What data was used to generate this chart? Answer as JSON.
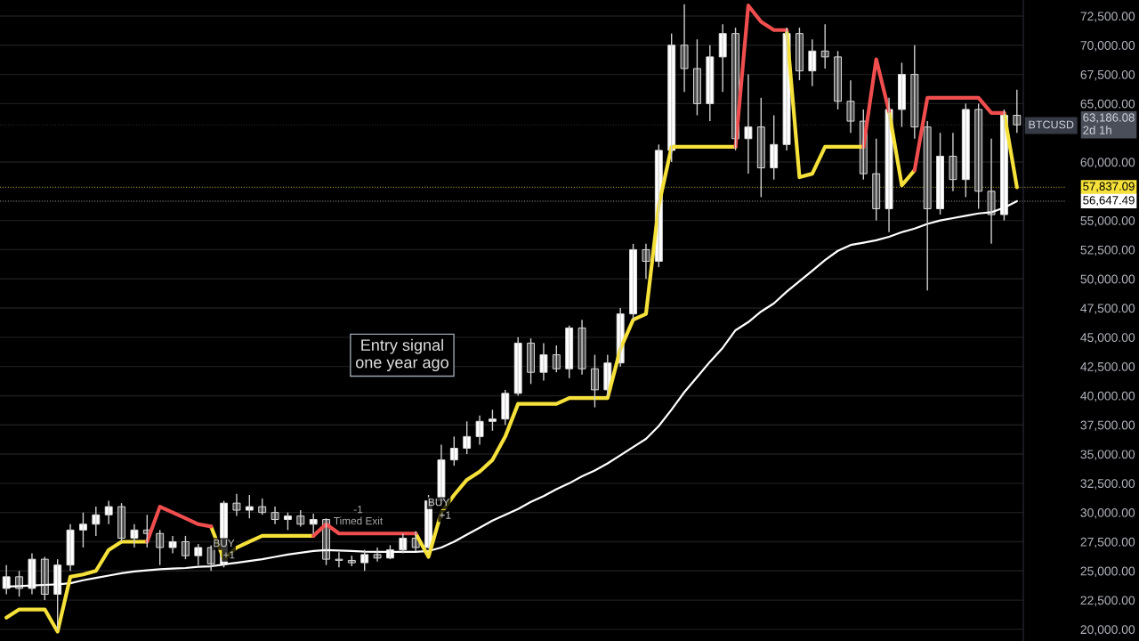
{
  "chart_data": {
    "type": "candlestick",
    "categories": [
      null,
      null,
      null,
      null,
      null,
      null,
      null,
      null,
      null,
      null,
      null,
      null,
      null,
      null,
      null,
      null,
      null,
      null,
      null,
      null,
      null,
      null,
      null,
      null,
      null,
      null,
      null,
      null,
      null,
      null,
      null,
      null,
      null,
      null,
      null,
      null,
      null,
      null,
      null,
      null,
      null,
      null,
      null,
      null,
      null,
      null,
      null,
      null,
      null,
      null,
      null,
      null,
      null,
      null,
      null,
      null,
      null,
      null,
      null,
      null,
      null,
      null,
      null,
      null,
      null,
      null,
      null,
      null,
      null,
      null,
      null,
      null,
      null,
      null,
      null,
      null,
      null,
      null,
      null,
      null
    ],
    "ohlc": [
      [
        23500,
        25500,
        23000,
        24500
      ],
      [
        24500,
        25000,
        22800,
        23500
      ],
      [
        23500,
        26500,
        23000,
        26000
      ],
      [
        26000,
        26200,
        22500,
        23000
      ],
      [
        23000,
        26000,
        20000,
        25500
      ],
      [
        25500,
        29000,
        25000,
        28500
      ],
      [
        28500,
        30000,
        27000,
        29000
      ],
      [
        29000,
        30500,
        28000,
        29800
      ],
      [
        29800,
        31000,
        29000,
        30500
      ],
      [
        30500,
        30800,
        27500,
        27800
      ],
      [
        27800,
        29000,
        27000,
        28500
      ],
      [
        28500,
        29800,
        27000,
        28200
      ],
      [
        28200,
        28500,
        25500,
        27000
      ],
      [
        27000,
        28000,
        26500,
        27500
      ],
      [
        27500,
        28000,
        26000,
        26300
      ],
      [
        26300,
        27300,
        25500,
        27000
      ],
      [
        27000,
        27200,
        25000,
        25600
      ],
      [
        25600,
        31000,
        25300,
        30800
      ],
      [
        30800,
        31600,
        29700,
        30200
      ],
      [
        30200,
        31500,
        29500,
        30500
      ],
      [
        30500,
        31200,
        29800,
        30000
      ],
      [
        30000,
        30500,
        29000,
        29400
      ],
      [
        29400,
        30000,
        28500,
        29700
      ],
      [
        29700,
        30200,
        28800,
        29000
      ],
      [
        29000,
        29900,
        28200,
        29400
      ],
      [
        29400,
        29500,
        25500,
        26000
      ],
      [
        26000,
        26600,
        25300,
        25900
      ],
      [
        25900,
        26300,
        25400,
        25700
      ],
      [
        25700,
        26800,
        25000,
        26400
      ],
      [
        26400,
        27000,
        25800,
        26100
      ],
      [
        26100,
        27200,
        26000,
        26800
      ],
      [
        26800,
        28200,
        26500,
        27800
      ],
      [
        27800,
        28400,
        26700,
        27000
      ],
      [
        27000,
        31500,
        26900,
        31000
      ],
      [
        31000,
        35800,
        30500,
        34500
      ],
      [
        34500,
        36500,
        34000,
        35500
      ],
      [
        35500,
        37800,
        35000,
        36500
      ],
      [
        36500,
        38300,
        35800,
        37800
      ],
      [
        37800,
        38800,
        37000,
        38000
      ],
      [
        38000,
        40500,
        37500,
        40200
      ],
      [
        40200,
        45000,
        40000,
        44500
      ],
      [
        44500,
        44900,
        41000,
        42000
      ],
      [
        42000,
        44500,
        41300,
        43500
      ],
      [
        43500,
        44300,
        42000,
        42300
      ],
      [
        42300,
        46000,
        41500,
        45800
      ],
      [
        45800,
        46500,
        41800,
        42300
      ],
      [
        42300,
        43500,
        39000,
        40500
      ],
      [
        40500,
        43500,
        40000,
        42800
      ],
      [
        42800,
        47500,
        42500,
        47000
      ],
      [
        47000,
        53000,
        46500,
        52500
      ],
      [
        52500,
        53000,
        50000,
        51500
      ],
      [
        51500,
        61500,
        51000,
        61000
      ],
      [
        61000,
        71000,
        60000,
        70000
      ],
      [
        70000,
        73500,
        66000,
        68000
      ],
      [
        68000,
        70500,
        64000,
        65000
      ],
      [
        65000,
        70000,
        63500,
        69000
      ],
      [
        69000,
        71800,
        66000,
        71000
      ],
      [
        71000,
        71500,
        61000,
        62000
      ],
      [
        62000,
        67500,
        59000,
        63000
      ],
      [
        63000,
        65500,
        57000,
        59500
      ],
      [
        59500,
        64000,
        58500,
        61500
      ],
      [
        61500,
        71500,
        61000,
        71000
      ],
      [
        71000,
        71500,
        67000,
        67800
      ],
      [
        67800,
        70500,
        66500,
        69500
      ],
      [
        69500,
        71800,
        68000,
        69000
      ],
      [
        69000,
        69500,
        64500,
        65200
      ],
      [
        65200,
        67000,
        62500,
        63500
      ],
      [
        63500,
        64500,
        58500,
        59000
      ],
      [
        59000,
        62000,
        55000,
        56000
      ],
      [
        56000,
        65500,
        54000,
        64500
      ],
      [
        64500,
        68500,
        63000,
        67500
      ],
      [
        67500,
        70000,
        62000,
        63000
      ],
      [
        63000,
        63500,
        49000,
        56000
      ],
      [
        56000,
        62500,
        55500,
        60500
      ],
      [
        60500,
        62500,
        57500,
        58500
      ],
      [
        58500,
        65000,
        57000,
        64500
      ],
      [
        64500,
        65000,
        56000,
        57500
      ],
      [
        57500,
        62000,
        53000,
        55500
      ],
      [
        55500,
        64500,
        55000,
        64000
      ],
      [
        64000,
        66200,
        62500,
        63186.08
      ]
    ],
    "colors": [
      "#ffffff",
      "#4a4a4a",
      "#ffffff",
      "#4a4a4a",
      "#ffffff",
      "#ffffff",
      "#ffffff",
      "#ffffff",
      "#ffffff",
      "#4a4a4a",
      "#ffffff",
      "#4a4a4a",
      "#4a4a4a",
      "#ffffff",
      "#4a4a4a",
      "#ffffff",
      "#4a4a4a",
      "#ffffff",
      "#4a4a4a",
      "#ffffff",
      "#4a4a4a",
      "#4a4a4a",
      "#ffffff",
      "#4a4a4a",
      "#ffffff",
      "#4a4a4a",
      "#4a4a4a",
      "#4a4a4a",
      "#ffffff",
      "#4a4a4a",
      "#ffffff",
      "#ffffff",
      "#4a4a4a",
      "#ffffff",
      "#ffffff",
      "#ffffff",
      "#ffffff",
      "#ffffff",
      "#ffffff",
      "#ffffff",
      "#ffffff",
      "#4a4a4a",
      "#ffffff",
      "#4a4a4a",
      "#ffffff",
      "#4a4a4a",
      "#4a4a4a",
      "#ffffff",
      "#ffffff",
      "#ffffff",
      "#4a4a4a",
      "#ffffff",
      "#ffffff",
      "#4a4a4a",
      "#4a4a4a",
      "#ffffff",
      "#ffffff",
      "#4a4a4a",
      "#ffffff",
      "#4a4a4a",
      "#ffffff",
      "#ffffff",
      "#4a4a4a",
      "#ffffff",
      "#4a4a4a",
      "#4a4a4a",
      "#4a4a4a",
      "#4a4a4a",
      "#4a4a4a",
      "#ffffff",
      "#ffffff",
      "#4a4a4a",
      "#4a4a4a",
      "#ffffff",
      "#4a4a4a",
      "#ffffff",
      "#4a4a4a",
      "#4a4a4a",
      "#ffffff",
      "#4a4a4a"
    ],
    "series": [
      {
        "type": "line",
        "color": "#ffffff",
        "values": [
          23650,
          23700,
          23750,
          23800,
          23850,
          23950,
          24200,
          24400,
          24600,
          24800,
          24950,
          25050,
          25150,
          25200,
          25250,
          25350,
          25400,
          25550,
          25700,
          25850,
          26000,
          26200,
          26400,
          26550,
          26700,
          26780,
          26750,
          26700,
          26650,
          26630,
          26630,
          26630,
          26630,
          26700,
          27000,
          27500,
          28100,
          28700,
          29300,
          29800,
          30300,
          30900,
          31400,
          32000,
          32500,
          33100,
          33600,
          34200,
          34900,
          35600,
          36300,
          37400,
          38800,
          40300,
          41600,
          42900,
          44100,
          45600,
          46300,
          47200,
          47900,
          48900,
          49800,
          50700,
          51600,
          52400,
          52900,
          53100,
          53300,
          53600,
          54000,
          54300,
          54700,
          55000,
          55200,
          55400,
          55600,
          55700,
          56100,
          56647.49
        ]
      },
      {
        "type": "line",
        "color": "#f5e13a",
        "values": [
          21000,
          21700,
          21700,
          21700,
          19800,
          24500,
          24700,
          25000,
          26800,
          27500,
          27500,
          27500,
          null,
          null,
          null,
          null,
          28800,
          26000,
          27000,
          27500,
          28000,
          28000,
          28000,
          28000,
          28000,
          null,
          null,
          null,
          null,
          null,
          null,
          null,
          28200,
          26200,
          30000,
          31500,
          32800,
          33500,
          34500,
          36500,
          39300,
          39300,
          39300,
          39300,
          39800,
          39800,
          39800,
          39800,
          44000,
          46500,
          47000,
          56300,
          61300,
          61300,
          61300,
          61300,
          61300,
          61300,
          null,
          null,
          null,
          71300,
          58700,
          59000,
          61300,
          61300,
          61300,
          61300,
          null,
          64350,
          58000,
          59300,
          null,
          null,
          null,
          null,
          null,
          null,
          64200,
          57837.09
        ]
      },
      {
        "type": "line",
        "color": "#f04e4e",
        "values": [
          null,
          null,
          null,
          null,
          null,
          null,
          null,
          null,
          null,
          null,
          null,
          27500,
          30500,
          30000,
          29500,
          29000,
          28800,
          null,
          null,
          null,
          null,
          null,
          null,
          null,
          28000,
          29000,
          28200,
          28200,
          28200,
          28200,
          28200,
          28200,
          28200,
          null,
          null,
          null,
          null,
          null,
          null,
          null,
          null,
          null,
          null,
          null,
          null,
          null,
          null,
          null,
          null,
          null,
          null,
          null,
          null,
          null,
          null,
          null,
          null,
          61300,
          73400,
          72000,
          71300,
          71300,
          null,
          null,
          null,
          null,
          null,
          61300,
          68800,
          64350,
          null,
          59300,
          65500,
          65500,
          65500,
          65500,
          65500,
          64200,
          64200,
          null
        ]
      }
    ],
    "ylim": [
      19000,
      73870
    ],
    "yticks": [
      {
        "value": 20000,
        "label": "20,000.00"
      },
      {
        "value": 22500,
        "label": "22,500.00"
      },
      {
        "value": 25000,
        "label": "25,000.00"
      },
      {
        "value": 27500,
        "label": "27,500.00"
      },
      {
        "value": 30000,
        "label": "30,000.00"
      },
      {
        "value": 32500,
        "label": "32,500.00"
      },
      {
        "value": 35000,
        "label": "35,000.00"
      },
      {
        "value": 37500,
        "label": "37,500.00"
      },
      {
        "value": 40000,
        "label": "40,000.00"
      },
      {
        "value": 42500,
        "label": "42,500.00"
      },
      {
        "value": 45000,
        "label": "45,000.00"
      },
      {
        "value": 47500,
        "label": "47,500.00"
      },
      {
        "value": 50000,
        "label": "50,000.00"
      },
      {
        "value": 52500,
        "label": "52,500.00"
      },
      {
        "value": 55000,
        "label": "55,000.00"
      },
      {
        "value": 60000,
        "label": "60,000.00"
      },
      {
        "value": 65000,
        "label": "65,000.00"
      },
      {
        "value": 67500,
        "label": "67,500.00"
      },
      {
        "value": 70000,
        "label": "70,000.00"
      },
      {
        "value": 72500,
        "label": "72,500.00"
      }
    ],
    "tick_labels": "y",
    "grid": "y",
    "ref_lines": [
      {
        "axis": "y",
        "value": 63186.08,
        "label": "63,186.08\n2d 1h",
        "color": "#4a4e59",
        "line_style": "dotted"
      },
      {
        "axis": "y",
        "value": 57837.09,
        "label": "57,837.09",
        "color": "#f5e13a",
        "line_style": "dotted"
      },
      {
        "axis": "y",
        "value": 56647.49,
        "label": "56,647.49",
        "color": "#ffffff",
        "line_style": "dotted"
      }
    ],
    "annotations": [
      "Entry signal\none year ago",
      {
        "text": "BUY",
        "y": 27300
      },
      {
        "text": "+1",
        "y": 26300
      },
      {
        "text": "BUY",
        "y": 30800
      },
      {
        "text": "+1",
        "y": 29700
      },
      "-1",
      "Timed Exit",
      "BTCUSD"
    ]
  }
}
